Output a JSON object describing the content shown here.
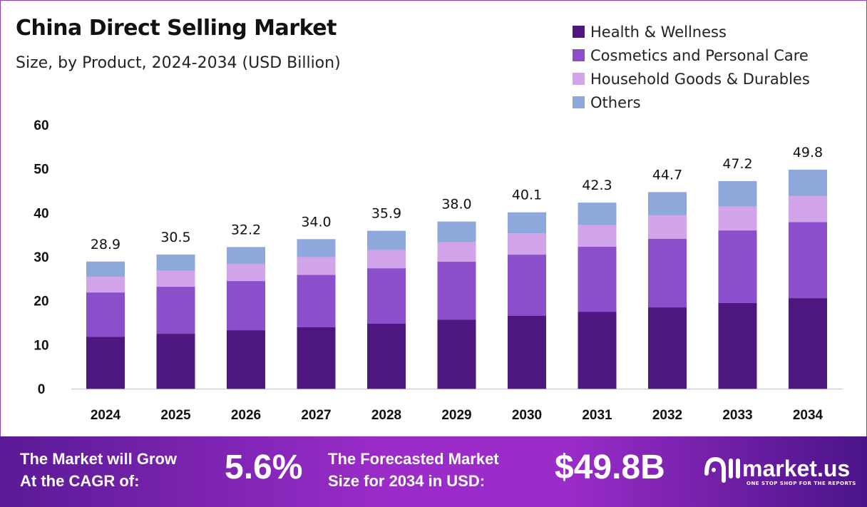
{
  "chart_data": {
    "type": "bar",
    "stacked": true,
    "title": "China Direct Selling Market",
    "subtitle": "Size, by Product, 2024-2034 (USD Billion)",
    "categories": [
      "2024",
      "2025",
      "2026",
      "2027",
      "2028",
      "2029",
      "2030",
      "2031",
      "2032",
      "2033",
      "2034"
    ],
    "series": [
      {
        "name": "Health & Wellness",
        "color": "#4e1780",
        "values": [
          11.8,
          12.5,
          13.3,
          14.0,
          14.8,
          15.7,
          16.6,
          17.5,
          18.5,
          19.5,
          20.6
        ]
      },
      {
        "name": "Cosmetics and Personal Care",
        "color": "#8b4fcb",
        "values": [
          10.1,
          10.7,
          11.2,
          11.9,
          12.6,
          13.2,
          13.9,
          14.8,
          15.6,
          16.5,
          17.3
        ]
      },
      {
        "name": "Household Goods & Durables",
        "color": "#d2a5ea",
        "values": [
          3.6,
          3.7,
          3.9,
          4.1,
          4.2,
          4.5,
          4.9,
          5.0,
          5.4,
          5.5,
          6.0
        ]
      },
      {
        "name": "Others",
        "color": "#8fa8dc",
        "values": [
          3.4,
          3.6,
          3.8,
          4.0,
          4.3,
          4.6,
          4.7,
          5.0,
          5.2,
          5.7,
          5.9
        ]
      }
    ],
    "totals": [
      "28.9",
      "30.5",
      "32.2",
      "34.0",
      "35.9",
      "38.0",
      "40.1",
      "42.3",
      "44.7",
      "47.2",
      "49.8"
    ],
    "ylim": [
      0,
      60
    ],
    "yticks": [
      "0",
      "10",
      "20",
      "30",
      "40",
      "50",
      "60"
    ],
    "grid": false,
    "legend_position": "top-right",
    "xlabel": "",
    "ylabel": ""
  },
  "footer": {
    "cagr_label_1": "The Market will Grow",
    "cagr_label_2": "At the CAGR of:",
    "cagr_value": "5.6%",
    "forecast_label_1": "The Forecasted Market",
    "forecast_label_2": "Size for 2034 in USD:",
    "forecast_value": "$49.8B",
    "logo_text": "market.us",
    "logo_tagline": "ONE STOP SHOP FOR THE REPORTS"
  }
}
